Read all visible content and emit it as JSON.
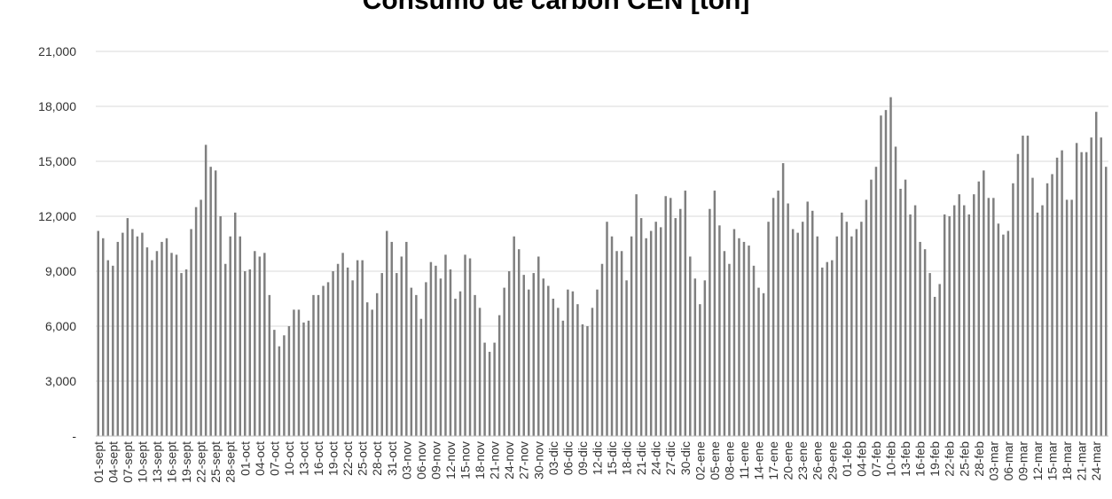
{
  "chart_data": {
    "type": "bar",
    "title": "Consumo de carbón CEN [ton]",
    "xlabel": "",
    "ylabel": "",
    "ylim": [
      0,
      21000
    ],
    "yticks": [
      0,
      3000,
      6000,
      9000,
      12000,
      15000,
      18000,
      21000
    ],
    "ytick_labels": [
      "-",
      "3,000",
      "6,000",
      "9,000",
      "12,000",
      "15,000",
      "18,000",
      "21,000"
    ],
    "grid": true,
    "bar_color": "#7f7f7f",
    "category_labels": [
      "01-sept",
      "04-sept",
      "07-sept",
      "10-sept",
      "13-sept",
      "16-sept",
      "19-sept",
      "22-sept",
      "25-sept",
      "28-sept",
      "01-oct",
      "04-oct",
      "07-oct",
      "10-oct",
      "13-oct",
      "16-oct",
      "19-oct",
      "22-oct",
      "25-oct",
      "28-oct",
      "31-oct",
      "03-nov",
      "06-nov",
      "09-nov",
      "12-nov",
      "15-nov",
      "18-nov",
      "21-nov",
      "24-nov",
      "27-nov",
      "30-nov",
      "03-dic",
      "06-dic",
      "09-dic",
      "12-dic",
      "15-dic",
      "18-dic",
      "21-dic",
      "24-dic",
      "27-dic",
      "30-dic",
      "02-ene",
      "05-ene",
      "08-ene",
      "11-ene",
      "14-ene",
      "17-ene",
      "20-ene",
      "23-ene",
      "26-ene",
      "29-ene",
      "01-feb",
      "04-feb",
      "07-feb",
      "10-feb",
      "13-feb",
      "16-feb",
      "19-feb",
      "22-feb",
      "25-feb",
      "28-feb",
      "03-mar",
      "06-mar",
      "09-mar",
      "12-mar",
      "15-mar",
      "18-mar",
      "21-mar",
      "24-mar"
    ],
    "values": [
      11200,
      10800,
      9600,
      9300,
      10600,
      11100,
      11900,
      11300,
      10900,
      11100,
      10300,
      9600,
      10100,
      10600,
      10800,
      10000,
      9900,
      8900,
      9100,
      11300,
      12500,
      12900,
      15900,
      14700,
      14500,
      12000,
      9400,
      10900,
      12200,
      10900,
      9000,
      9100,
      10100,
      9800,
      10000,
      7700,
      5800,
      4900,
      5500,
      6000,
      6900,
      6900,
      6200,
      6300,
      7700,
      7700,
      8200,
      8400,
      9000,
      9400,
      10000,
      9200,
      8500,
      9600,
      9600,
      7300,
      6900,
      7800,
      8900,
      11200,
      10600,
      8900,
      9800,
      10600,
      8100,
      7700,
      6400,
      8400,
      9500,
      9300,
      8600,
      9900,
      9100,
      7500,
      7900,
      9900,
      9700,
      7700,
      7000,
      5100,
      4600,
      5100,
      6600,
      8100,
      9000,
      10900,
      10200,
      8800,
      8000,
      8900,
      9800,
      8600,
      8200,
      7500,
      7000,
      6300,
      8000,
      7900,
      7200,
      6100,
      6000,
      7000,
      8000,
      9400,
      11700,
      10900,
      10100,
      10100,
      8500,
      10900,
      13200,
      11900,
      10800,
      11200,
      11700,
      11400,
      13100,
      13000,
      11900,
      12400,
      13400,
      9800,
      8600,
      7200,
      8500,
      12400,
      13400,
      11500,
      10100,
      9400,
      11300,
      10800,
      10600,
      10400,
      9300,
      8100,
      7800,
      11700,
      13000,
      13400,
      14900,
      12700,
      11300,
      11100,
      11700,
      12800,
      12300,
      10900,
      9200,
      9500,
      9600,
      10900,
      12200,
      11700,
      10900,
      11300,
      11700,
      12900,
      14000,
      14700,
      17500,
      17800,
      18500,
      15800,
      13500,
      14000,
      12100,
      12600,
      10600,
      10200,
      8900,
      7600,
      8300,
      12100,
      12000,
      12600,
      13200,
      12600,
      12100,
      13200,
      13900,
      14500,
      13000,
      13000,
      11600,
      11000,
      11200,
      13800,
      15400,
      16400,
      16400,
      14100,
      12200,
      12600,
      13800,
      14300,
      15200,
      15600,
      12900,
      12900,
      16000,
      15500,
      15500,
      16300,
      17700,
      16300,
      14700
    ]
  }
}
